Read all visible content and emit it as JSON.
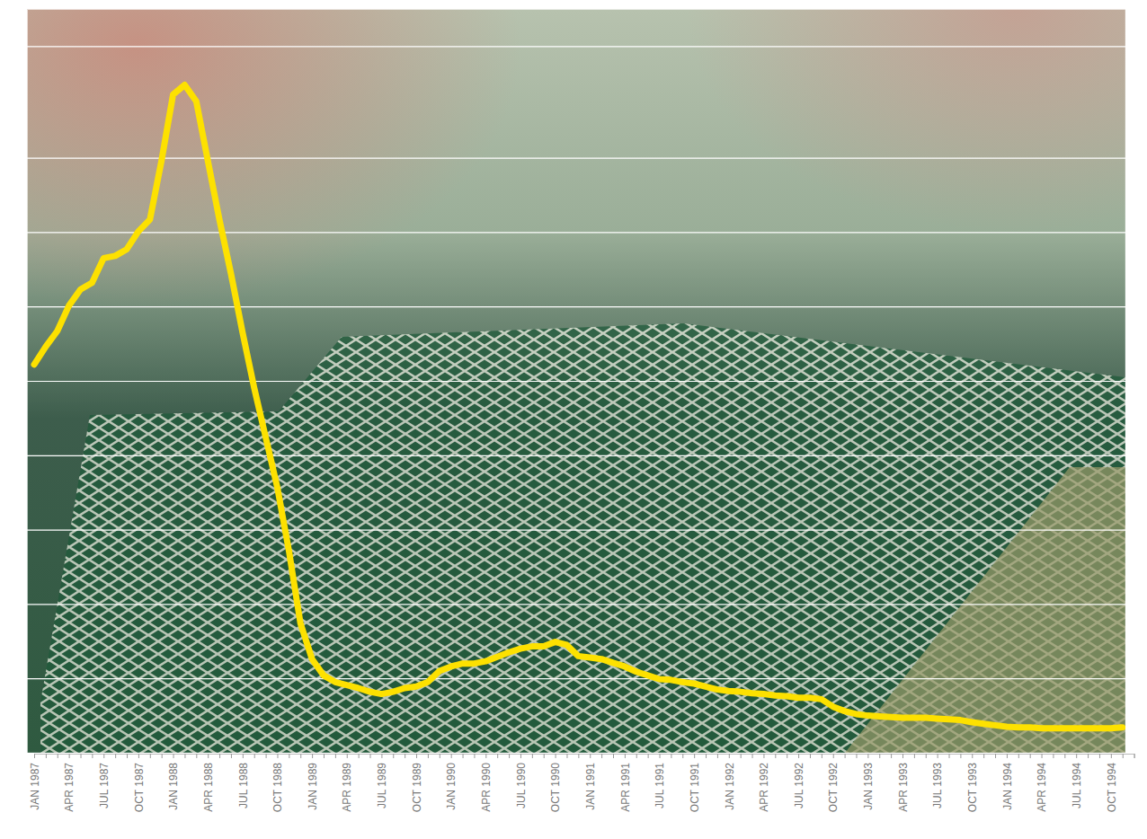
{
  "chart_data": {
    "type": "line",
    "categories": [
      "JAN 1987",
      null,
      null,
      "APR 1987",
      null,
      null,
      "JUL 1987",
      null,
      null,
      "OCT 1987",
      null,
      null,
      "JAN 1988",
      null,
      null,
      "APR 1988",
      null,
      null,
      "JUL 1988",
      null,
      null,
      "OCT 1988",
      null,
      null,
      "JAN 1989",
      null,
      null,
      "APR 1989",
      null,
      null,
      "JUL 1989",
      null,
      null,
      "OCT 1989",
      null,
      null,
      "JAN 1990",
      null,
      null,
      "APR 1990",
      null,
      null,
      "JUL 1990",
      null,
      null,
      "OCT 1990",
      null,
      null,
      "JAN 1991",
      null,
      null,
      "APR 1991",
      null,
      null,
      "JUL 1991",
      null,
      null,
      "OCT 1991",
      null,
      null,
      "JAN 1992",
      null,
      null,
      "APR 1992",
      null,
      null,
      "JUL 1992",
      null,
      null,
      "OCT 1992",
      null,
      null,
      "JAN 1993",
      null,
      null,
      "APR 1993",
      null,
      null,
      "JUL 1993",
      null,
      null,
      "OCT 1993",
      null,
      null,
      "JAN 1994",
      null,
      null,
      "APR 1994",
      null,
      null,
      "JUL 1994",
      null,
      null,
      "OCT 1994",
      null,
      null
    ],
    "values": [
      5.22,
      5.46,
      5.67,
      6.01,
      6.23,
      6.32,
      6.65,
      6.68,
      6.77,
      7.01,
      7.17,
      7.96,
      8.85,
      8.98,
      8.76,
      7.96,
      7.17,
      6.44,
      5.65,
      4.91,
      4.24,
      3.57,
      2.72,
      1.74,
      1.26,
      1.04,
      0.95,
      0.91,
      0.87,
      0.82,
      0.79,
      0.82,
      0.87,
      0.89,
      0.95,
      1.1,
      1.16,
      1.2,
      1.2,
      1.23,
      1.29,
      1.35,
      1.4,
      1.43,
      1.43,
      1.49,
      1.45,
      1.3,
      1.28,
      1.26,
      1.21,
      1.16,
      1.09,
      1.04,
      0.99,
      0.98,
      0.95,
      0.93,
      0.89,
      0.85,
      0.83,
      0.82,
      0.8,
      0.79,
      0.77,
      0.76,
      0.74,
      0.74,
      0.72,
      0.62,
      0.56,
      0.52,
      0.5,
      0.49,
      0.48,
      0.47,
      0.47,
      0.47,
      0.46,
      0.45,
      0.44,
      0.41,
      0.39,
      0.37,
      0.35,
      0.34,
      0.34,
      0.33,
      0.33,
      0.33,
      0.33,
      0.33,
      0.33,
      0.33,
      0.34,
      null
    ],
    "color": "#fde100",
    "ylim": [
      0,
      10
    ],
    "yticks": [
      1,
      2,
      3,
      4,
      5,
      6,
      7,
      8,
      9.5
    ],
    "grid": true,
    "tick_labels": "x"
  }
}
